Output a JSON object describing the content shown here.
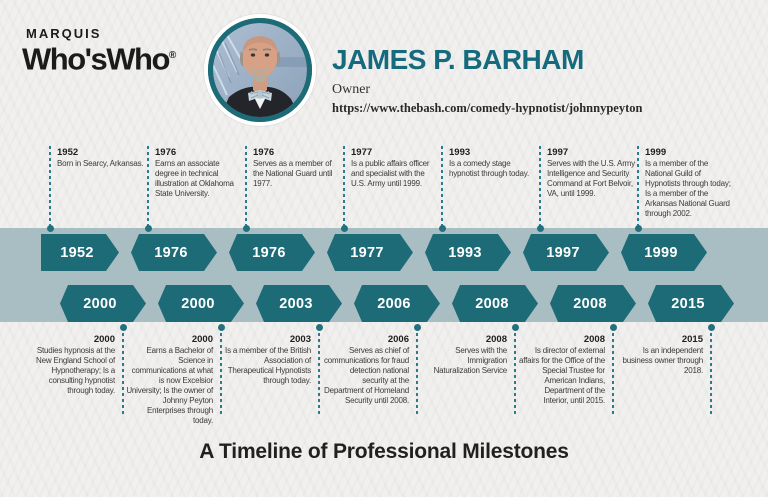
{
  "brand": {
    "line1": "MARQUIS",
    "line2": "Who'sWho",
    "registered": "®"
  },
  "profile": {
    "name": "JAMES P. BARHAM",
    "title": "Owner",
    "url": "https://www.thebash.com/comedy-hypnotist/johnnypeyton"
  },
  "footer": {
    "title": "A Timeline of Professional Milestones"
  },
  "colors": {
    "accent_teal": "#1d6b77",
    "name_teal": "#156a7d",
    "band": "#a9bec3",
    "connector": "#2b7d8b",
    "background": "#f1f0ee"
  },
  "timeline": {
    "top": [
      {
        "year": "1952",
        "description": "Born in Searcy, Arkansas."
      },
      {
        "year": "1976",
        "description": "Earns an associate degree in technical illustration at Oklahoma State University."
      },
      {
        "year": "1976",
        "description": "Serves as a member of the National Guard until 1977."
      },
      {
        "year": "1977",
        "description": "Is a public affairs officer and specialist with the U.S. Army until 1999."
      },
      {
        "year": "1993",
        "description": "Is a comedy stage hypnotist through today."
      },
      {
        "year": "1997",
        "description": "Serves with the U.S. Army Intelligence and Security Command at Fort Belvoir, VA, until 1999."
      },
      {
        "year": "1999",
        "description": "Is a member of the National Guild of Hypnotists through today; Is a member of the Arkansas National Guard through 2002."
      }
    ],
    "bottom": [
      {
        "year": "2000",
        "description": "Studies hypnosis at the New England School of Hypnotherapy; Is a consulting hypnotist through today."
      },
      {
        "year": "2000",
        "description": "Earns a Bachelor of Science in communications at what is now Excelsior University; Is the owner of Johnny Peyton Enterprises through today."
      },
      {
        "year": "2003",
        "description": "Is a member of the British Association of Therapeutical Hypnotists through today."
      },
      {
        "year": "2006",
        "description": "Serves as chief of communications for fraud detection national security at the Department of Homeland Security until 2008."
      },
      {
        "year": "2008",
        "description": "Serves with the Immigration Naturalization Service"
      },
      {
        "year": "2008",
        "description": "Is director of external affairs for the Office of the Special Trustee for American Indians, Department of the Interior, until 2015."
      },
      {
        "year": "2015",
        "description": "Is an independent business owner through 2018."
      }
    ]
  }
}
